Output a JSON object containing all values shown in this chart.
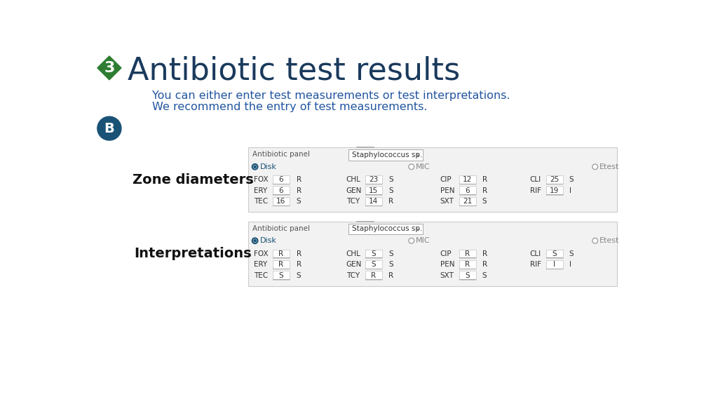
{
  "title": "Antibiotic test results",
  "subtitle_line1": "You can either enter test measurements or test interpretations.",
  "subtitle_line2": "We recommend the entry of test measurements.",
  "bg_color": "#ffffff",
  "title_color": "#1a3a5c",
  "subtitle_color": "#2255a0",
  "panel_bg": "#f2f2f2",
  "panel_border": "#cccccc",
  "text_dark": "#333333",
  "text_mid": "#555555",
  "radio_blue": "#1a5276",
  "green_badge": "#2e7d32",
  "blue_badge": "#1a5276",
  "panel_label": "Antibiotic panel",
  "dropdown_text": "Staphylococcus sp.",
  "panel1_rows": [
    [
      "FOX",
      "6",
      "R",
      "CHL",
      "23",
      "S",
      "CIP",
      "12",
      "R",
      "CLI",
      "25",
      "S"
    ],
    [
      "ERY",
      "6",
      "R",
      "GEN",
      "15",
      "S",
      "PEN",
      "6",
      "R",
      "RIF",
      "19",
      "I"
    ],
    [
      "TEC",
      "16",
      "S",
      "TCY",
      "14",
      "R",
      "SXT",
      "21",
      "S",
      "",
      "",
      ""
    ]
  ],
  "panel2_rows": [
    [
      "FOX",
      "R",
      "R",
      "CHL",
      "S",
      "S",
      "CIP",
      "R",
      "R",
      "CLI",
      "S",
      "S"
    ],
    [
      "ERY",
      "R",
      "R",
      "GEN",
      "S",
      "S",
      "PEN",
      "R",
      "R",
      "RIF",
      "I",
      "I"
    ],
    [
      "TEC",
      "S",
      "S",
      "TCY",
      "R",
      "R",
      "SXT",
      "S",
      "S",
      "",
      "",
      ""
    ]
  ],
  "left_label1": "Zone diameters",
  "left_label2": "Interpretations"
}
